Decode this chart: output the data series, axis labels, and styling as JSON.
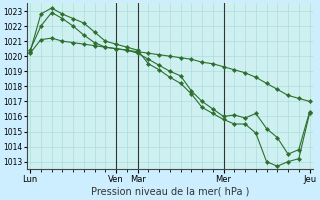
{
  "bg_color": "#cceeff",
  "plot_bg_color": "#cff0f0",
  "grid_color": "#aadddd",
  "line_color": "#2d6e2d",
  "marker_color": "#2d6e2d",
  "xlabel_text": "Pression niveau de la mer( hPa )",
  "ylim": [
    1012.5,
    1023.5
  ],
  "yticks": [
    1013,
    1014,
    1015,
    1016,
    1017,
    1018,
    1019,
    1020,
    1021,
    1022,
    1023
  ],
  "xtick_labels": [
    "Lun",
    "Ven",
    "Mar",
    "Mer",
    "Jeu"
  ],
  "xtick_positions": [
    0,
    8,
    10,
    18,
    26
  ],
  "vline_positions": [
    8,
    10,
    18
  ],
  "line1_x": [
    0,
    1,
    2,
    3,
    4,
    5,
    6,
    7,
    8,
    9,
    10,
    11,
    12,
    13,
    14,
    15,
    16,
    17,
    18,
    19,
    20,
    21,
    22,
    23,
    24,
    25,
    26
  ],
  "line1_y": [
    1020.2,
    1021.1,
    1021.2,
    1021.0,
    1020.9,
    1020.8,
    1020.7,
    1020.6,
    1020.5,
    1020.4,
    1020.3,
    1020.2,
    1020.1,
    1020.0,
    1019.9,
    1019.8,
    1019.6,
    1019.5,
    1019.3,
    1019.1,
    1018.9,
    1018.6,
    1018.2,
    1017.8,
    1017.4,
    1017.2,
    1017.0
  ],
  "line2_x": [
    0,
    1,
    2,
    3,
    4,
    5,
    6,
    7,
    8,
    9,
    10,
    11,
    12,
    13,
    14,
    15,
    16,
    17,
    18,
    19,
    20,
    21,
    22,
    23,
    24,
    25,
    26
  ],
  "line2_y": [
    1020.3,
    1022.8,
    1023.2,
    1022.8,
    1022.5,
    1022.2,
    1021.6,
    1021.0,
    1020.8,
    1020.6,
    1020.4,
    1019.5,
    1019.1,
    1018.6,
    1018.2,
    1017.5,
    1016.6,
    1016.2,
    1015.8,
    1015.5,
    1015.5,
    1014.9,
    1013.0,
    1012.7,
    1013.0,
    1013.2,
    1016.2
  ],
  "line3_x": [
    0,
    1,
    2,
    3,
    4,
    5,
    6,
    7,
    8,
    9,
    10,
    11,
    12,
    13,
    14,
    15,
    16,
    17,
    18,
    19,
    20,
    21,
    22,
    23,
    24,
    25,
    26
  ],
  "line3_y": [
    1020.4,
    1022.0,
    1022.9,
    1022.5,
    1022.0,
    1021.4,
    1020.9,
    1020.6,
    1020.5,
    1020.4,
    1020.2,
    1019.8,
    1019.4,
    1019.0,
    1018.7,
    1017.7,
    1017.0,
    1016.5,
    1016.0,
    1016.1,
    1015.9,
    1016.2,
    1015.2,
    1014.6,
    1013.5,
    1013.8,
    1016.3
  ],
  "n_points": 27,
  "figsize": [
    3.2,
    2.0
  ],
  "dpi": 100
}
